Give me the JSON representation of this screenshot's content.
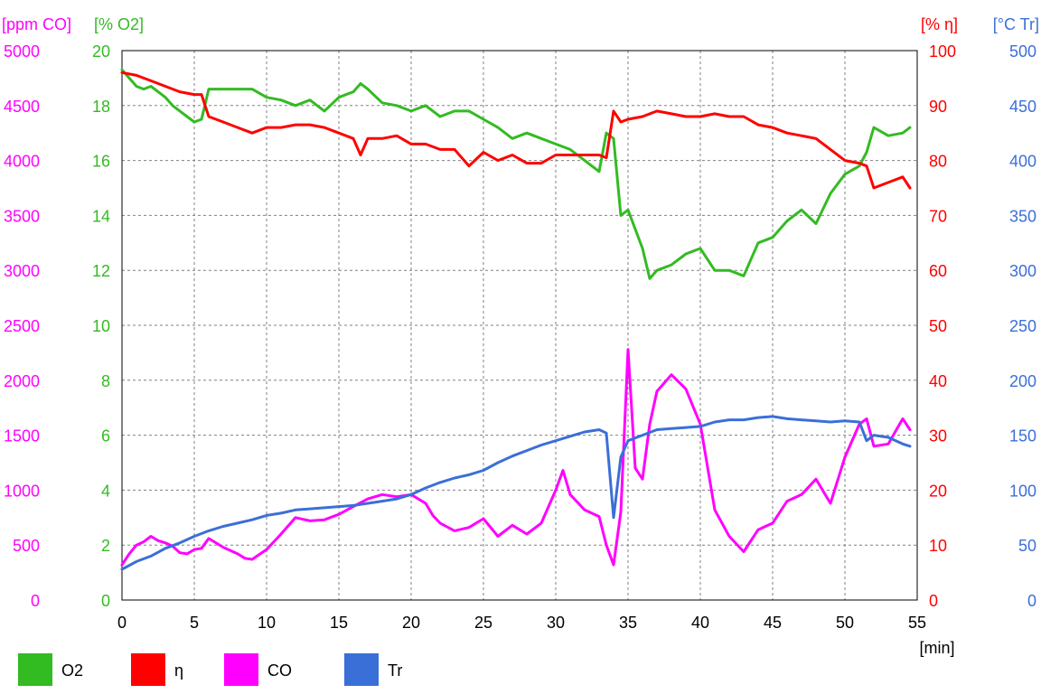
{
  "chart_data": {
    "type": "line",
    "title": "",
    "xlabel": "[min]",
    "xlim": [
      0,
      55
    ],
    "xticks": [
      0,
      5,
      10,
      15,
      20,
      25,
      30,
      35,
      40,
      45,
      50,
      55
    ],
    "grid": true,
    "legend_position": "bottom",
    "axes": [
      {
        "id": "co",
        "unit_label": "[ppm CO]",
        "side": "left-outer",
        "color": "#ff00ff",
        "range": [
          0,
          5000
        ],
        "ticks": [
          0,
          500,
          1000,
          1500,
          2000,
          2500,
          3000,
          3500,
          4000,
          4500,
          5000
        ]
      },
      {
        "id": "o2",
        "unit_label": "[% O2]",
        "side": "left-inner",
        "color": "#33bb22",
        "range": [
          0,
          20
        ],
        "ticks": [
          0,
          2,
          4,
          6,
          8,
          10,
          12,
          14,
          16,
          18,
          20
        ]
      },
      {
        "id": "eta",
        "unit_label": "[% η]",
        "side": "right-inner",
        "color": "#ff0000",
        "range": [
          0,
          100
        ],
        "ticks": [
          0,
          10,
          20,
          30,
          40,
          50,
          60,
          70,
          80,
          90,
          100
        ]
      },
      {
        "id": "tr",
        "unit_label": "[°C Tr]",
        "side": "right-outer",
        "color": "#3b6fd8",
        "range": [
          0,
          500
        ],
        "ticks": [
          0,
          50,
          100,
          150,
          200,
          250,
          300,
          350,
          400,
          450,
          500
        ]
      }
    ],
    "series": [
      {
        "name": "O2",
        "axis": "o2",
        "color": "#33bb22",
        "x": [
          0,
          0.5,
          1,
          1.5,
          2,
          2.5,
          3,
          3.5,
          4,
          4.5,
          5,
          5.5,
          6,
          6.5,
          7,
          8,
          9,
          10,
          11,
          12,
          13,
          14,
          15,
          16,
          16.5,
          17,
          18,
          19,
          20,
          21,
          22,
          23,
          24,
          25,
          26,
          27,
          28,
          29,
          30,
          31,
          32,
          32.5,
          33,
          33.5,
          34,
          34.5,
          35,
          35.5,
          36,
          36.5,
          37,
          38,
          39,
          40,
          41,
          42,
          43,
          44,
          45,
          46,
          47,
          48,
          49,
          50,
          51,
          51.5,
          52,
          53,
          54,
          54.5
        ],
        "values": [
          19.3,
          19.0,
          18.7,
          18.6,
          18.7,
          18.5,
          18.3,
          18.0,
          17.8,
          17.6,
          17.4,
          17.5,
          18.6,
          18.6,
          18.6,
          18.6,
          18.6,
          18.3,
          18.2,
          18.0,
          18.2,
          17.8,
          18.3,
          18.5,
          18.8,
          18.6,
          18.1,
          18.0,
          17.8,
          18.0,
          17.6,
          17.8,
          17.8,
          17.5,
          17.2,
          16.8,
          17.0,
          16.8,
          16.6,
          16.4,
          16.0,
          15.8,
          15.6,
          17.0,
          16.8,
          14.0,
          14.2,
          13.5,
          12.8,
          11.7,
          12.0,
          12.2,
          12.6,
          12.8,
          12.0,
          12.0,
          11.8,
          13.0,
          13.2,
          13.8,
          14.2,
          13.7,
          14.8,
          15.5,
          15.8,
          16.3,
          17.2,
          16.9,
          17.0,
          17.2
        ]
      },
      {
        "name": "η",
        "axis": "eta",
        "color": "#ff0000",
        "x": [
          0,
          1,
          2,
          3,
          4,
          5,
          5.5,
          6,
          7,
          8,
          9,
          10,
          11,
          12,
          13,
          14,
          15,
          16,
          16.5,
          17,
          18,
          19,
          20,
          21,
          22,
          23,
          24,
          25,
          26,
          27,
          28,
          29,
          30,
          31,
          32,
          33,
          33.5,
          34,
          34.5,
          35,
          36,
          37,
          38,
          39,
          40,
          41,
          42,
          43,
          44,
          45,
          46,
          47,
          48,
          49,
          50,
          51,
          51.5,
          52,
          53,
          54,
          54.5
        ],
        "values": [
          96,
          95.5,
          94.5,
          93.5,
          92.5,
          92,
          92,
          88,
          87,
          86,
          85,
          86,
          86,
          86.5,
          86.5,
          86,
          85,
          84,
          81,
          84,
          84,
          84.5,
          83,
          83,
          82,
          82,
          79,
          81.5,
          80,
          81,
          79.5,
          79.5,
          81,
          81,
          81,
          81,
          80.5,
          89,
          87,
          87.5,
          88,
          89,
          88.5,
          88,
          88,
          88.5,
          88,
          88,
          86.5,
          86,
          85,
          84.5,
          84,
          82,
          80,
          79.5,
          79,
          75,
          76,
          77,
          75
        ]
      },
      {
        "name": "CO",
        "axis": "co",
        "color": "#ff00ff",
        "x": [
          0,
          0.5,
          1,
          1.5,
          2,
          2.5,
          3,
          3.5,
          4,
          4.5,
          5,
          5.5,
          6,
          7,
          8,
          8.5,
          9,
          10,
          11,
          12,
          13,
          14,
          15,
          16,
          17,
          18,
          19,
          20,
          21,
          21.5,
          22,
          23,
          24,
          25,
          26,
          27,
          28,
          29,
          30,
          30.5,
          31,
          32,
          33,
          33.5,
          34,
          34.5,
          35,
          35.5,
          36,
          36.5,
          37,
          38,
          39,
          40,
          41,
          42,
          43,
          44,
          45,
          46,
          47,
          48,
          49,
          50,
          51,
          51.5,
          52,
          53,
          54,
          54.5
        ],
        "values": [
          320,
          420,
          500,
          530,
          580,
          540,
          520,
          490,
          430,
          420,
          460,
          470,
          560,
          480,
          420,
          380,
          370,
          460,
          600,
          750,
          720,
          730,
          780,
          850,
          920,
          960,
          940,
          960,
          880,
          770,
          700,
          630,
          660,
          740,
          580,
          680,
          600,
          700,
          1000,
          1180,
          960,
          820,
          760,
          500,
          320,
          800,
          2280,
          1200,
          1100,
          1600,
          1900,
          2050,
          1920,
          1600,
          820,
          580,
          440,
          640,
          700,
          900,
          960,
          1100,
          880,
          1300,
          1600,
          1650,
          1400,
          1420,
          1650,
          1550
        ]
      },
      {
        "name": "Tr",
        "axis": "tr",
        "color": "#3b6fd8",
        "x": [
          0,
          1,
          2,
          3,
          4,
          5,
          6,
          7,
          8,
          9,
          10,
          11,
          12,
          13,
          14,
          15,
          16,
          17,
          18,
          19,
          20,
          21,
          22,
          23,
          24,
          25,
          26,
          27,
          28,
          29,
          30,
          31,
          32,
          33,
          33.5,
          34,
          34.5,
          35,
          36,
          37,
          38,
          39,
          40,
          41,
          42,
          43,
          44,
          45,
          46,
          47,
          48,
          49,
          50,
          51,
          51.5,
          52,
          53,
          54,
          54.5
        ],
        "values": [
          28,
          35,
          40,
          47,
          52,
          58,
          63,
          67,
          70,
          73,
          77,
          79,
          82,
          83,
          84,
          85,
          86,
          88,
          90,
          92,
          96,
          102,
          107,
          111,
          114,
          118,
          125,
          131,
          136,
          141,
          145,
          149,
          153,
          155,
          152,
          75,
          130,
          145,
          150,
          155,
          156,
          157,
          158,
          162,
          164,
          164,
          166,
          167,
          165,
          164,
          163,
          162,
          163,
          162,
          145,
          150,
          148,
          142,
          140
        ]
      }
    ]
  }
}
